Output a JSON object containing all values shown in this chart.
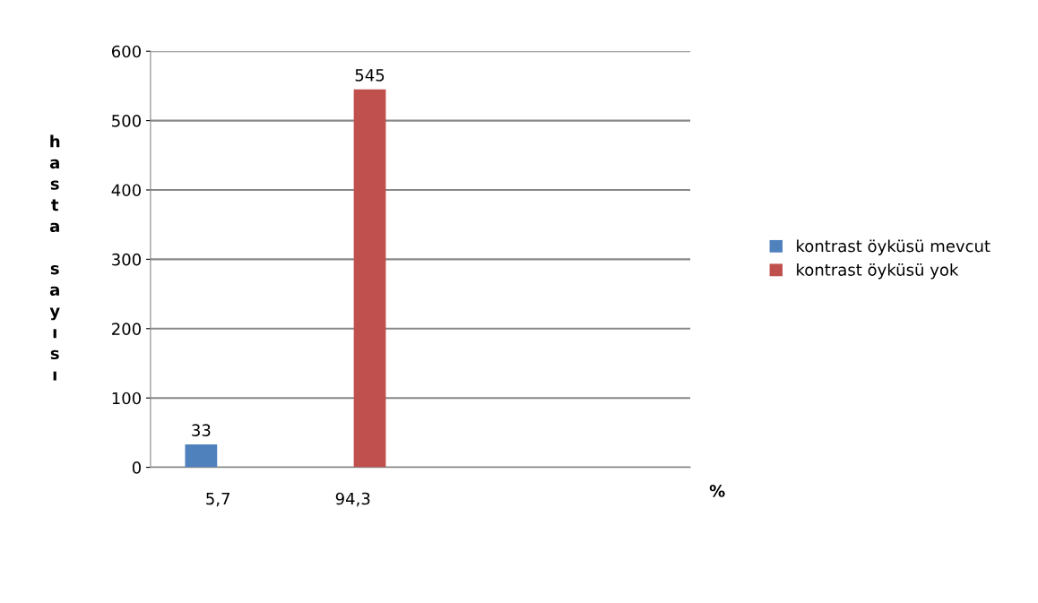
{
  "chart_data": {
    "type": "bar",
    "ylabel": "hasta sayısı",
    "xlabel": "%",
    "categories": [
      "5,7",
      "94,3",
      null,
      null
    ],
    "series": [
      {
        "name": "kontrast öyküsü mevcut",
        "color": "#4f81bd",
        "values": [
          33,
          null,
          null,
          null
        ]
      },
      {
        "name": "kontrast öyküsü yok",
        "color": "#c0504d",
        "values": [
          null,
          545,
          null,
          null
        ]
      }
    ],
    "ylim": [
      0,
      600
    ],
    "yticks": [
      0,
      100,
      200,
      300,
      400,
      500,
      600
    ],
    "grid": "y",
    "legend": "right",
    "data_labels": true
  }
}
